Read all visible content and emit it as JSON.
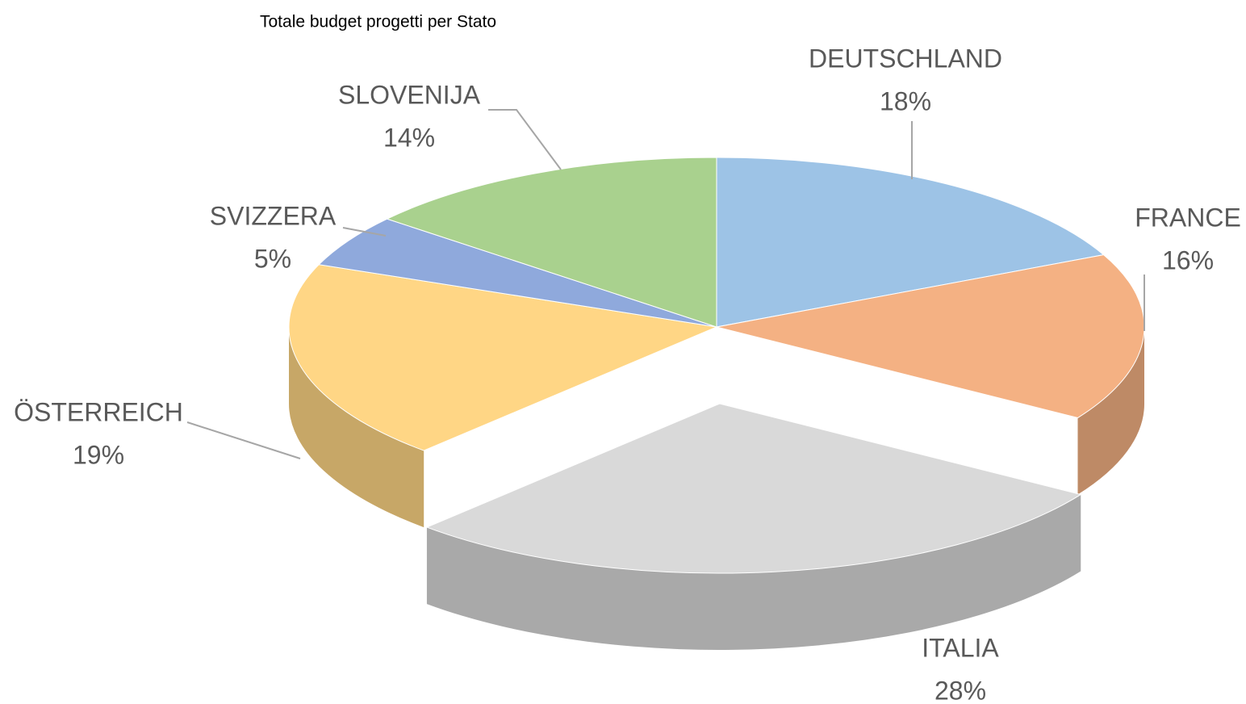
{
  "chart_data": {
    "type": "pie3d",
    "title": "Totale budget progetti per Stato",
    "categories": [
      "DEUTSCHLAND",
      "FRANCE",
      "ITALIA",
      "ÖSTERREICH",
      "SVIZZERA",
      "SLOVENIJA"
    ],
    "values": [
      18,
      16,
      28,
      19,
      5,
      14
    ],
    "value_labels": [
      "18%",
      "16%",
      "28%",
      "19%",
      "5%",
      "14%"
    ],
    "colors": [
      "#9dc3e6",
      "#f4b183",
      "#d9d9d9",
      "#ffd685",
      "#8fa9dc",
      "#a9d18e"
    ]
  }
}
